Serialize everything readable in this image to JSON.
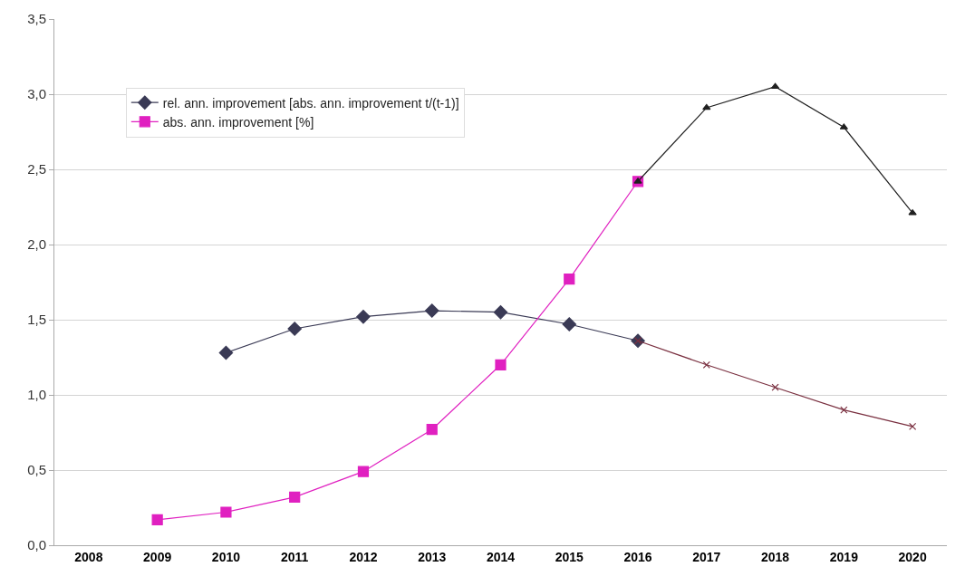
{
  "chart_data": {
    "type": "line",
    "categories": [
      "2008",
      "2009",
      "2010",
      "2011",
      "2012",
      "2013",
      "2014",
      "2015",
      "2016",
      "2017",
      "2018",
      "2019",
      "2020"
    ],
    "series": [
      {
        "name": "rel. ann. improvement [abs. ann. improvement t/(t-1)]",
        "color": "#3a3a55",
        "marker": "diamond",
        "values": [
          null,
          null,
          1.28,
          1.44,
          1.52,
          1.56,
          1.55,
          1.47,
          1.36,
          null,
          null,
          null,
          null
        ]
      },
      {
        "name": "abs. ann. improvement [%]",
        "color": "#e020c0",
        "marker": "square",
        "values": [
          null,
          0.17,
          0.22,
          0.32,
          0.49,
          0.77,
          1.2,
          1.77,
          2.42,
          null,
          null,
          null,
          null
        ]
      },
      {
        "color": "#202020",
        "marker": "triangle",
        "values": [
          null,
          null,
          null,
          null,
          null,
          null,
          null,
          null,
          2.42,
          2.91,
          3.05,
          2.78,
          2.21
        ]
      },
      {
        "color": "#7a3040",
        "marker": "cross",
        "values": [
          null,
          null,
          null,
          null,
          null,
          null,
          null,
          null,
          1.36,
          1.2,
          1.05,
          0.9,
          0.79
        ]
      }
    ],
    "ylim": [
      0,
      3.5
    ],
    "yticks": [
      {
        "value": 0,
        "label": "0,0"
      },
      {
        "value": 0.5,
        "label": "0,5"
      },
      {
        "value": 1,
        "label": "1,0"
      },
      {
        "value": 1.5,
        "label": "1,5"
      },
      {
        "value": 2,
        "label": "2,0"
      },
      {
        "value": 2.5,
        "label": "2,5"
      },
      {
        "value": 3,
        "label": "3,0"
      },
      {
        "value": 3.5,
        "label": "3,5"
      }
    ],
    "grid": "y",
    "legend": "top left"
  }
}
